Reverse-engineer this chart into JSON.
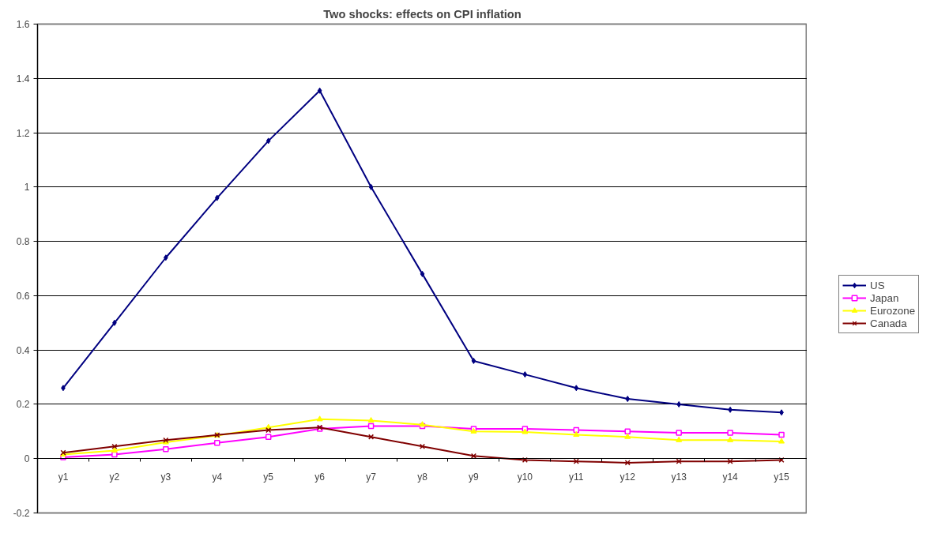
{
  "chart_data": {
    "type": "line",
    "title": "Two shocks: effects on CPI inflation",
    "categories": [
      "y1",
      "y2",
      "y3",
      "y4",
      "y5",
      "y6",
      "y7",
      "y8",
      "y9",
      "y10",
      "y11",
      "y12",
      "y13",
      "y14",
      "y15"
    ],
    "series": [
      {
        "name": "US",
        "color": "#000080",
        "marker": "diamond",
        "values": [
          0.26,
          0.5,
          0.74,
          0.96,
          1.17,
          1.355,
          1.0,
          0.68,
          0.36,
          0.31,
          0.26,
          0.22,
          0.2,
          0.18,
          0.17
        ]
      },
      {
        "name": "Japan",
        "color": "#ff00ff",
        "marker": "square",
        "values": [
          0.005,
          0.015,
          0.035,
          0.058,
          0.08,
          0.11,
          0.12,
          0.12,
          0.11,
          0.11,
          0.105,
          0.1,
          0.095,
          0.095,
          0.088
        ]
      },
      {
        "name": "Eurozone",
        "color": "#ffff00",
        "marker": "triangle",
        "values": [
          0.015,
          0.03,
          0.06,
          0.085,
          0.115,
          0.145,
          0.14,
          0.125,
          0.1,
          0.098,
          0.088,
          0.08,
          0.068,
          0.068,
          0.063
        ]
      },
      {
        "name": "Canada",
        "color": "#800000",
        "marker": "cross",
        "values": [
          0.022,
          0.045,
          0.068,
          0.087,
          0.105,
          0.115,
          0.08,
          0.045,
          0.01,
          -0.005,
          -0.01,
          -0.015,
          -0.01,
          -0.01,
          -0.005
        ]
      }
    ],
    "ylim": [
      -0.2,
      1.6
    ],
    "yticks": [
      {
        "value": -0.2,
        "label": "-0.2"
      },
      {
        "value": 0,
        "label": "0"
      },
      {
        "value": 0.2,
        "label": "0.2"
      },
      {
        "value": 0.4,
        "label": "0.4"
      },
      {
        "value": 0.6,
        "label": "0.6"
      },
      {
        "value": 0.8,
        "label": "0.8"
      },
      {
        "value": 1,
        "label": "1"
      },
      {
        "value": 1.2,
        "label": "1.2"
      },
      {
        "value": 1.4,
        "label": "1.4"
      },
      {
        "value": 1.6,
        "label": "1.6"
      }
    ],
    "grid": "y",
    "legend": "right",
    "line_style": "solid"
  }
}
